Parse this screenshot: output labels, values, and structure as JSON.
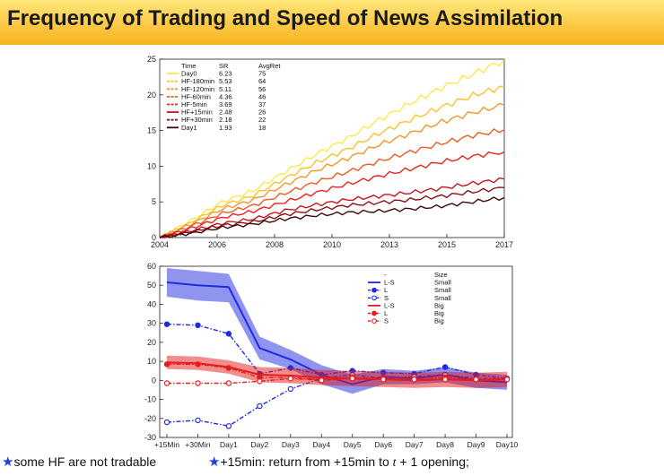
{
  "title": "Frequency of Trading and Speed of News Assimilation",
  "notes": {
    "left_text": "some HF are not tradable",
    "right_prefix": "+15min: return from +15min to ",
    "right_var": "t",
    "right_suffix": " + 1 opening;",
    "star_color": "#1f3fe0"
  },
  "chart_data": [
    {
      "type": "line",
      "title": "",
      "xlabel": "",
      "ylabel": "",
      "x_ticks": [
        "2004",
        "2006",
        "2008",
        "2010",
        "2013",
        "2015",
        "2017"
      ],
      "ylim": [
        0,
        25
      ],
      "y_ticks": [
        0,
        5,
        10,
        15,
        20,
        25
      ],
      "grid": false,
      "legend": {
        "placement": "top-left",
        "headers": [
          "Time",
          "SR",
          "AvgRet"
        ],
        "entries": [
          {
            "name": "Day0",
            "sr": "6.23",
            "avgret": "75",
            "color": "#ffe84a",
            "dash": "solid"
          },
          {
            "name": "HF-180min",
            "sr": "5.53",
            "avgret": "64",
            "color": "#f9c233",
            "dash": "dashed"
          },
          {
            "name": "HF-120min",
            "sr": "5.11",
            "avgret": "56",
            "color": "#f5962a",
            "dash": "dashed"
          },
          {
            "name": "HF-60min",
            "sr": "4.36",
            "avgret": "46",
            "color": "#ef5a24",
            "dash": "dashed"
          },
          {
            "name": "HF-5min",
            "sr": "3.69",
            "avgret": "37",
            "color": "#e8231e",
            "dash": "dashed"
          },
          {
            "name": "HF+15min",
            "sr": "2.48",
            "avgret": "26",
            "color": "#c4161c",
            "dash": "solid"
          },
          {
            "name": "HF+30min",
            "sr": "2.18",
            "avgret": "22",
            "color": "#8a1014",
            "dash": "dashed"
          },
          {
            "name": "Day1",
            "sr": "1.93",
            "avgret": "18",
            "color": "#3d0808",
            "dash": "solid"
          }
        ]
      },
      "series": [
        {
          "name": "Day0",
          "values": [
            0,
            2.4,
            5,
            6.6,
            9.2,
            11.7,
            13.9,
            16.5,
            18.8,
            21,
            22.9,
            24.9
          ]
        },
        {
          "name": "HF-180min",
          "values": [
            0,
            2.1,
            4.5,
            5.9,
            8.3,
            10.5,
            12.4,
            14.6,
            16.5,
            18.3,
            19.9,
            21.2
          ]
        },
        {
          "name": "HF-120min",
          "values": [
            0,
            1.9,
            4,
            5.3,
            7.4,
            9.4,
            11.1,
            13,
            14.6,
            16.2,
            17.5,
            18.6
          ]
        },
        {
          "name": "HF-60min",
          "values": [
            0,
            1.6,
            3.4,
            4.5,
            6.2,
            7.8,
            9.2,
            10.7,
            12,
            13.2,
            14.3,
            15.1
          ]
        },
        {
          "name": "HF-5min",
          "values": [
            0,
            1.3,
            2.8,
            3.7,
            5,
            6.3,
            7.5,
            8.6,
            9.6,
            10.6,
            11.4,
            12
          ]
        },
        {
          "name": "HF+15min",
          "values": [
            0,
            0.9,
            2,
            2.6,
            3.8,
            4.6,
            5.3,
            5.8,
            6.3,
            6.9,
            7.6,
            8.2
          ]
        },
        {
          "name": "HF+30min",
          "values": [
            0,
            0.8,
            1.7,
            2.2,
            3.2,
            3.9,
            4.5,
            4.9,
            5.3,
            5.8,
            6.4,
            7
          ]
        },
        {
          "name": "Day1",
          "values": [
            0,
            0.6,
            1.4,
            1.9,
            2.6,
            3.1,
            3.5,
            3.7,
            4,
            4.4,
            5,
            5.6
          ]
        }
      ]
    },
    {
      "type": "line",
      "title": "",
      "xlabel": "",
      "ylabel": "",
      "categories": [
        "+15Min",
        "+30Min",
        "Day1",
        "Day2",
        "Day3",
        "Day4",
        "Day5",
        "Day6",
        "Day7",
        "Day8",
        "Day9",
        "Day10"
      ],
      "ylim": [
        -30,
        60
      ],
      "y_ticks": [
        -30,
        -20,
        -10,
        0,
        10,
        20,
        30,
        40,
        50,
        60
      ],
      "grid": false,
      "legend": {
        "placement": "top-right",
        "headers": [
          "-",
          "Size"
        ],
        "entries": [
          {
            "name": "L-S",
            "size": "Small",
            "color": "#1f2be0",
            "style": "band"
          },
          {
            "name": "L",
            "size": "Small",
            "color": "#1f2be0",
            "style": "dash-filled-circle"
          },
          {
            "name": "S",
            "size": "Small",
            "color": "#1f2be0",
            "style": "dash-open-circle"
          },
          {
            "name": "L-S",
            "size": "Big",
            "color": "#e61c1c",
            "style": "band"
          },
          {
            "name": "L",
            "size": "Big",
            "color": "#e61c1c",
            "style": "dash-filled-circle"
          },
          {
            "name": "S",
            "size": "Big",
            "color": "#e61c1c",
            "style": "dash-open-circle"
          }
        ]
      },
      "series": [
        {
          "name": "L-S",
          "size": "Small",
          "values": [
            51.5,
            50,
            49,
            17,
            11,
            3,
            -2,
            2,
            1,
            3,
            0,
            -1
          ],
          "lower": [
            44,
            42,
            41,
            11,
            6,
            -2,
            -7,
            -2,
            -2,
            -1,
            -4,
            -5
          ],
          "upper": [
            59,
            57.5,
            56,
            23,
            16,
            8,
            3,
            6,
            5,
            7,
            4,
            3
          ]
        },
        {
          "name": "L",
          "size": "Small",
          "values": [
            29.5,
            29,
            24.5,
            3.5,
            6.5,
            3,
            5,
            4,
            3.5,
            7,
            3,
            1
          ]
        },
        {
          "name": "S",
          "size": "Small",
          "values": [
            -22,
            -21,
            -24,
            -13.5,
            -4.5,
            1,
            3,
            1,
            2,
            3,
            1,
            1
          ]
        },
        {
          "name": "L-S",
          "size": "Big",
          "values": [
            9.5,
            9,
            7,
            3,
            2.5,
            1.5,
            1,
            0.5,
            0,
            0.5,
            0,
            0.5
          ],
          "lower": [
            6,
            5.5,
            3.5,
            -1,
            -1.5,
            -2.5,
            -3,
            -3.5,
            -4,
            -3.5,
            -4,
            -3.5
          ],
          "upper": [
            13,
            12.5,
            10.5,
            7,
            6.5,
            5.5,
            5,
            4.5,
            4,
            4.5,
            4,
            4.5
          ]
        },
        {
          "name": "L",
          "size": "Big",
          "values": [
            8.5,
            8.5,
            6.5,
            1.5,
            1.5,
            0.5,
            1.5,
            1,
            0.5,
            1.5,
            0.5,
            1
          ]
        },
        {
          "name": "S",
          "size": "Big",
          "values": [
            -1.5,
            -1.5,
            -1.5,
            -0.5,
            1,
            0,
            1,
            0.5,
            0.5,
            0.5,
            0.5,
            0.5
          ]
        }
      ]
    }
  ]
}
